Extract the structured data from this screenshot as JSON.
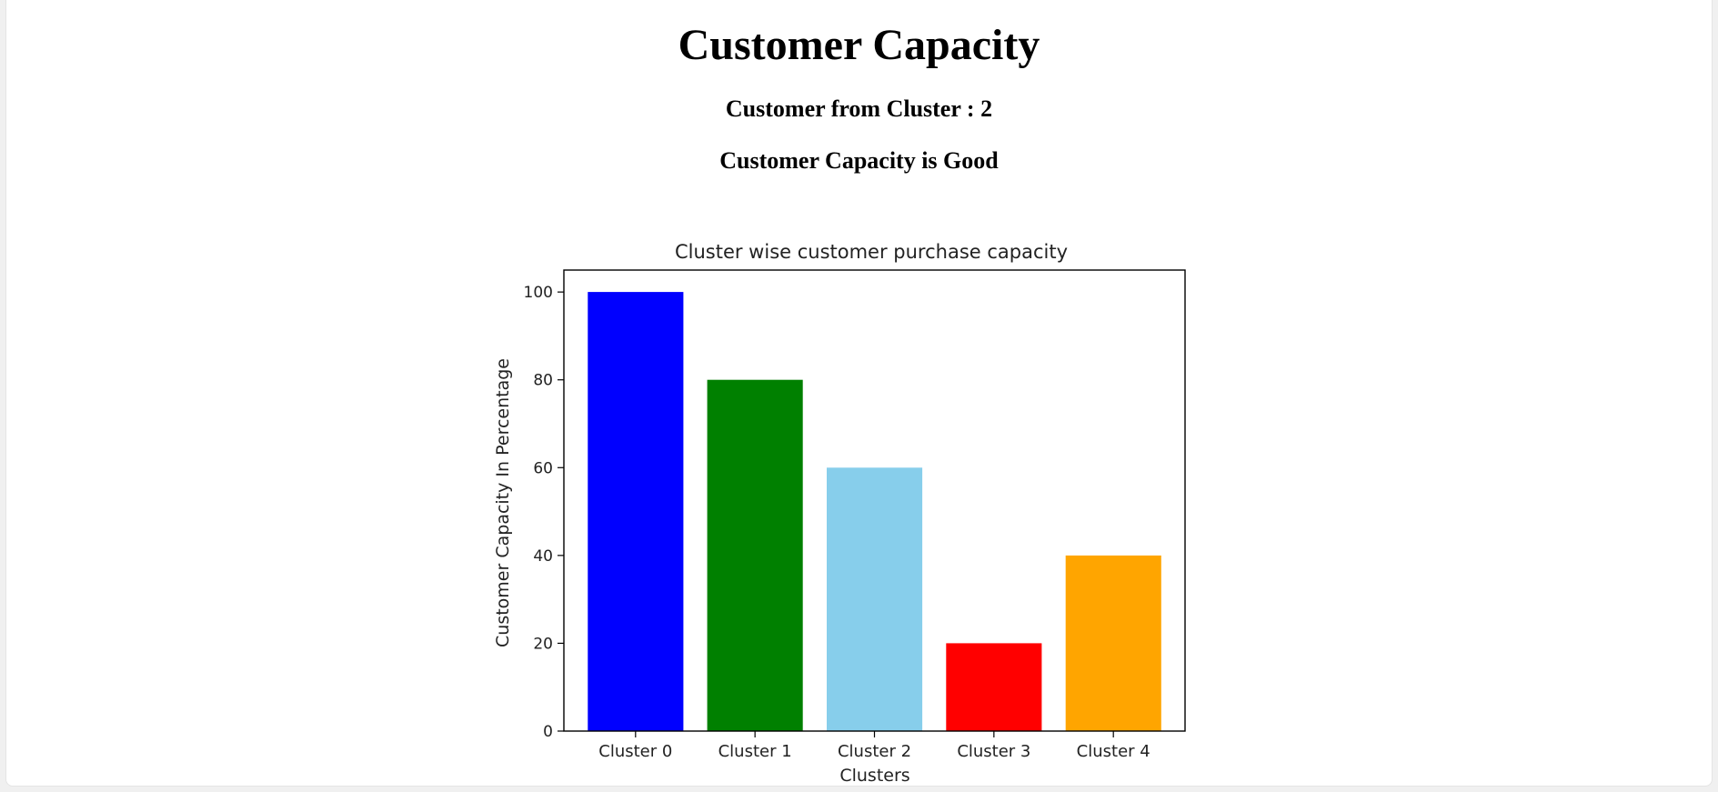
{
  "header": {
    "title": "Customer Capacity",
    "cluster_line": "Customer from Cluster : 2",
    "capacity_line": "Customer Capacity is Good"
  },
  "chart_data": {
    "type": "bar",
    "title": "Cluster wise customer purchase capacity",
    "xlabel": "Clusters",
    "ylabel": "Customer Capacity In Percentage",
    "categories": [
      "Cluster 0",
      "Cluster 1",
      "Cluster 2",
      "Cluster 3",
      "Cluster 4"
    ],
    "values": [
      100,
      80,
      60,
      20,
      40
    ],
    "colors": [
      "#0000ff",
      "#008000",
      "#87ceeb",
      "#ff0000",
      "#ffa500"
    ],
    "ylim": [
      0,
      105
    ],
    "yticks": [
      0,
      20,
      40,
      60,
      80,
      100
    ],
    "grid": false,
    "legend": "none"
  }
}
